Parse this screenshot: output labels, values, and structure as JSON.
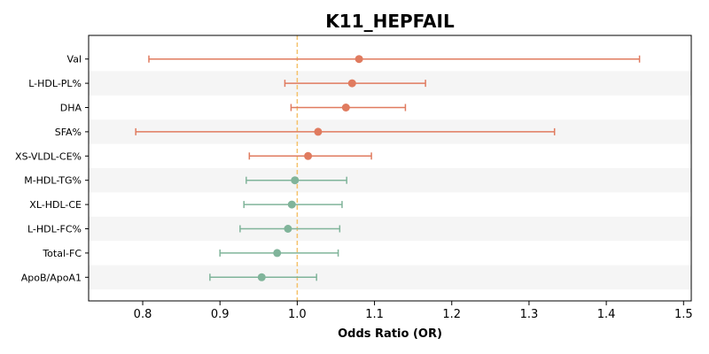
{
  "chart_data": {
    "type": "forest",
    "title": "K11_HEPFAIL",
    "xlabel": "Odds Ratio (OR)",
    "xlim": [
      0.73,
      1.51
    ],
    "xticks": [
      0.8,
      0.9,
      1.0,
      1.1,
      1.2,
      1.3,
      1.4,
      1.5
    ],
    "xtick_labels": [
      "0.8",
      "0.9",
      "1.0",
      "1.1",
      "1.2",
      "1.3",
      "1.4",
      "1.5"
    ],
    "reference_line": 1.0,
    "reference_color": "#f5c26b",
    "alternating_row_color": "#f5f5f5",
    "colors": {
      "positive": "#e07b5f",
      "negative": "#80b49a"
    },
    "rows": [
      {
        "label": "Val",
        "or": 1.08,
        "lo": 0.808,
        "hi": 1.443,
        "direction": "positive"
      },
      {
        "label": "L-HDL-PL%",
        "or": 1.071,
        "lo": 0.984,
        "hi": 1.166,
        "direction": "positive"
      },
      {
        "label": "DHA",
        "or": 1.063,
        "lo": 0.992,
        "hi": 1.14,
        "direction": "positive"
      },
      {
        "label": "SFA%",
        "or": 1.027,
        "lo": 0.791,
        "hi": 1.333,
        "direction": "positive"
      },
      {
        "label": "XS-VLDL-CE%",
        "or": 1.014,
        "lo": 0.938,
        "hi": 1.096,
        "direction": "positive"
      },
      {
        "label": "M-HDL-TG%",
        "or": 0.997,
        "lo": 0.934,
        "hi": 1.064,
        "direction": "negative"
      },
      {
        "label": "XL-HDL-CE",
        "or": 0.993,
        "lo": 0.931,
        "hi": 1.058,
        "direction": "negative"
      },
      {
        "label": "L-HDL-FC%",
        "or": 0.988,
        "lo": 0.926,
        "hi": 1.055,
        "direction": "negative"
      },
      {
        "label": "Total-FC",
        "or": 0.974,
        "lo": 0.9,
        "hi": 1.053,
        "direction": "negative"
      },
      {
        "label": "ApoB/ApoA1",
        "or": 0.954,
        "lo": 0.887,
        "hi": 1.025,
        "direction": "negative"
      }
    ]
  }
}
